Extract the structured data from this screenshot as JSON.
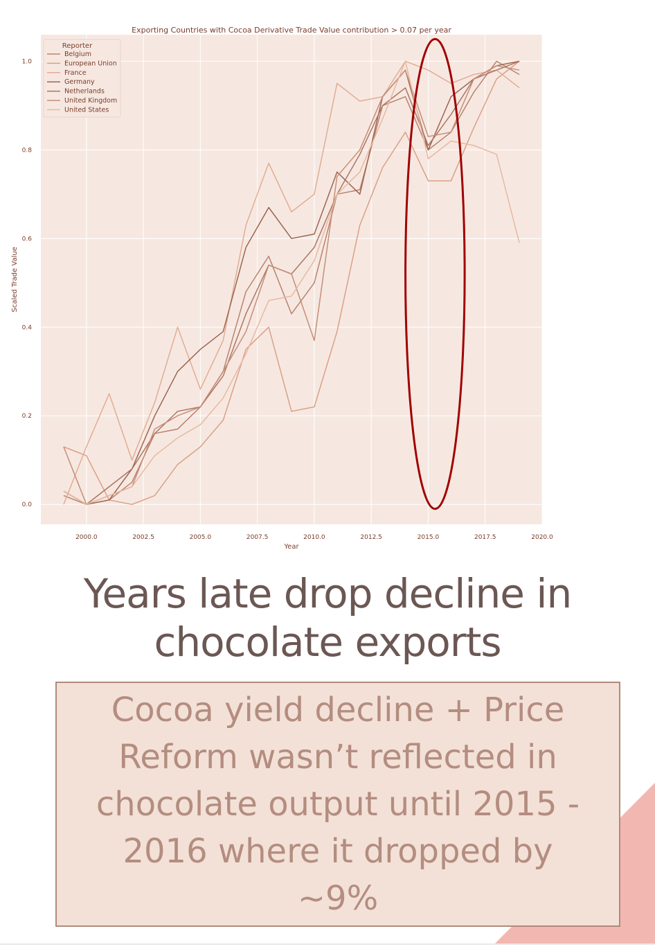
{
  "chart_data": {
    "type": "line",
    "title": "Exporting Countries with Cocoa Derivative Trade Value contribution > 0.07 per year",
    "xlabel": "Year",
    "ylabel": "Scaled Trade Value",
    "xlim": [
      1998.0,
      2020.0
    ],
    "ylim": [
      -0.045,
      1.06
    ],
    "xticks": [
      2000.0,
      2002.5,
      2005.0,
      2007.5,
      2010.0,
      2012.5,
      2015.0,
      2017.5,
      2020.0
    ],
    "xtick_labels": [
      "2000.0",
      "2002.5",
      "2005.0",
      "2007.5",
      "2010.0",
      "2012.5",
      "2015.0",
      "2017.5",
      "2020.0"
    ],
    "yticks": [
      0.0,
      0.2,
      0.4,
      0.6,
      0.8,
      1.0
    ],
    "ytick_labels": [
      "0.0",
      "0.2",
      "0.4",
      "0.6",
      "0.8",
      "1.0"
    ],
    "grid": true,
    "legend_title": "Reporter",
    "legend_position": "top-left",
    "x": [
      1999,
      2000,
      2001,
      2002,
      2003,
      2004,
      2005,
      2006,
      2007,
      2008,
      2009,
      2010,
      2011,
      2012,
      2013,
      2014,
      2015,
      2016,
      2017,
      2018,
      2019
    ],
    "series": [
      {
        "name": "Belgium",
        "color": "#b9826f",
        "values": [
          0.02,
          0.0,
          0.01,
          0.05,
          0.16,
          0.17,
          0.22,
          0.3,
          0.48,
          0.56,
          0.43,
          0.5,
          0.7,
          0.71,
          0.9,
          0.92,
          0.8,
          0.84,
          0.93,
          1.0,
          0.97
        ]
      },
      {
        "name": "European Union",
        "color": "#dc9f86",
        "values": [
          0.13,
          0.11,
          0.01,
          0.0,
          0.02,
          0.09,
          0.13,
          0.19,
          0.35,
          0.4,
          0.21,
          0.22,
          0.39,
          0.63,
          0.76,
          0.84,
          0.73,
          0.73,
          0.85,
          0.96,
          1.0
        ]
      },
      {
        "name": "France",
        "color": "#e2ac93",
        "values": [
          0.0,
          0.13,
          0.25,
          0.1,
          0.23,
          0.4,
          0.26,
          0.37,
          0.63,
          0.77,
          0.66,
          0.7,
          0.95,
          0.91,
          0.92,
          1.0,
          0.98,
          0.95,
          0.97,
          0.98,
          0.94
        ]
      },
      {
        "name": "Germany",
        "color": "#9c6552",
        "values": [
          0.03,
          0.0,
          0.01,
          0.08,
          0.2,
          0.3,
          0.35,
          0.39,
          0.58,
          0.67,
          0.6,
          0.61,
          0.75,
          0.7,
          0.92,
          0.98,
          0.8,
          0.92,
          0.96,
          0.99,
          1.0
        ]
      },
      {
        "name": "Netherlands",
        "color": "#ad7562",
        "values": [
          0.03,
          0.0,
          0.04,
          0.08,
          0.16,
          0.21,
          0.22,
          0.29,
          0.43,
          0.54,
          0.52,
          0.58,
          0.7,
          0.79,
          0.9,
          0.94,
          0.81,
          0.88,
          0.96,
          0.98,
          1.0
        ]
      },
      {
        "name": "United Kingdom",
        "color": "#c68d78",
        "values": [
          0.13,
          0.0,
          0.02,
          0.04,
          0.17,
          0.2,
          0.22,
          0.3,
          0.39,
          0.54,
          0.52,
          0.37,
          0.74,
          0.8,
          0.92,
          0.98,
          0.83,
          0.84,
          0.96,
          0.99,
          0.98
        ]
      },
      {
        "name": "United States",
        "color": "#e8b8a0",
        "values": [
          0.03,
          0.0,
          0.02,
          0.04,
          0.11,
          0.15,
          0.18,
          0.24,
          0.34,
          0.46,
          0.47,
          0.55,
          0.7,
          0.75,
          0.87,
          1.0,
          0.78,
          0.82,
          0.81,
          0.79,
          0.59
        ]
      }
    ],
    "annotation": {
      "type": "ellipse",
      "color": "#a00000",
      "center_x": 2015.3,
      "center_y": 0.52,
      "x_radius": 1.3,
      "y_radius": 0.53
    }
  },
  "headline": "Years late drop decline in chocolate exports",
  "callout": "Cocoa yield decline + Price Reform wasn’t reflected in chocolate output until 2015 - 2016 where it dropped by ~9%",
  "colors": {
    "plot_bg": "#f6e8e1",
    "grid": "#ffffff",
    "text": "#7a3b2a",
    "callout_bg": "#f3e1d7",
    "callout_border": "#b08a7c",
    "callout_text": "#b48d80",
    "headline_text": "#6b5753",
    "corner_accent": "#f2b7b0"
  }
}
